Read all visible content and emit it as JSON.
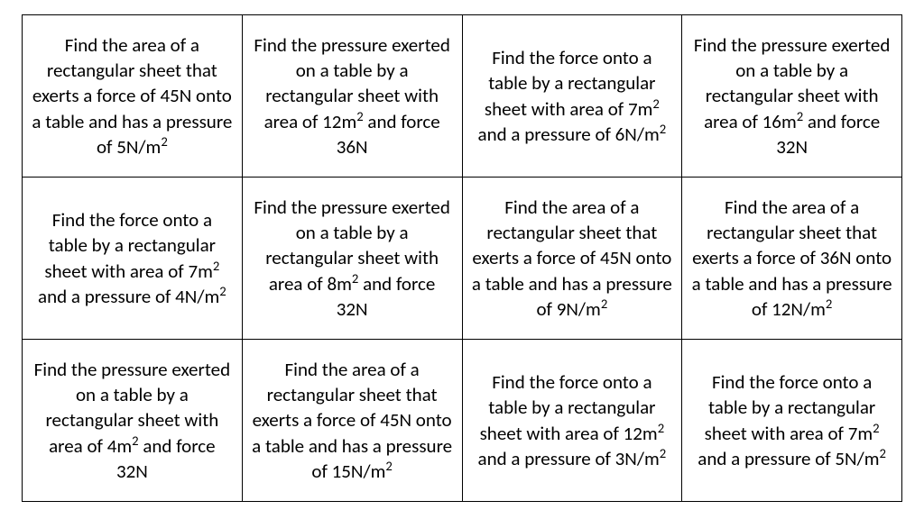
{
  "table": {
    "type": "table",
    "columns": 4,
    "rows_count": 3,
    "border_color": "#000000",
    "background_color": "#ffffff",
    "text_color": "#000000",
    "font_family": "Calibri",
    "cell_fontsize_pt": 16,
    "line_height": 1.35,
    "rows": [
      [
        {
          "html": "Find the area of a rectangular sheet that exerts a force of 45N onto a table and has a pressure of 5N/m<sup>2</sup>"
        },
        {
          "html": "Find the pressure exerted on a table by a rectangular sheet with area of 12m<sup>2</sup> and force 36N"
        },
        {
          "html": "Find the force onto a table by a rectangular sheet with area of 7m<sup>2</sup> and a pressure of 6N/m<sup>2</sup>"
        },
        {
          "html": "Find the pressure exerted on a table by a rectangular sheet with area of 16m<sup>2</sup> and force 32N"
        }
      ],
      [
        {
          "html": "Find the force onto a table by a rectangular sheet with area of 7m<sup>2</sup> and a pressure of 4N/m<sup>2</sup>"
        },
        {
          "html": "Find the pressure exerted on a table by a rectangular sheet with area of 8m<sup>2</sup> and force 32N"
        },
        {
          "html": "Find the area of a rectangular sheet that exerts a force of 45N onto a table and has a pressure of 9N/m<sup>2</sup>"
        },
        {
          "html": "Find the area of a rectangular sheet that exerts a force of 36N onto a table and has a pressure of 12N/m<sup>2</sup>"
        }
      ],
      [
        {
          "html": "Find the pressure exerted on a table by a rectangular sheet with area of 4m<sup>2</sup> and force 32N"
        },
        {
          "html": "Find the area of a rectangular sheet that exerts a force of 45N onto a table and has a pressure of 15N/m<sup>2</sup>"
        },
        {
          "html": "Find the force onto a table by a rectangular sheet with area of 12m<sup>2</sup> and a pressure of 3N/m<sup>2</sup>"
        },
        {
          "html": "Find the force onto a table by a rectangular sheet with area of 7m<sup>2</sup> and a pressure of 5N/m<sup>2</sup>"
        }
      ]
    ]
  }
}
